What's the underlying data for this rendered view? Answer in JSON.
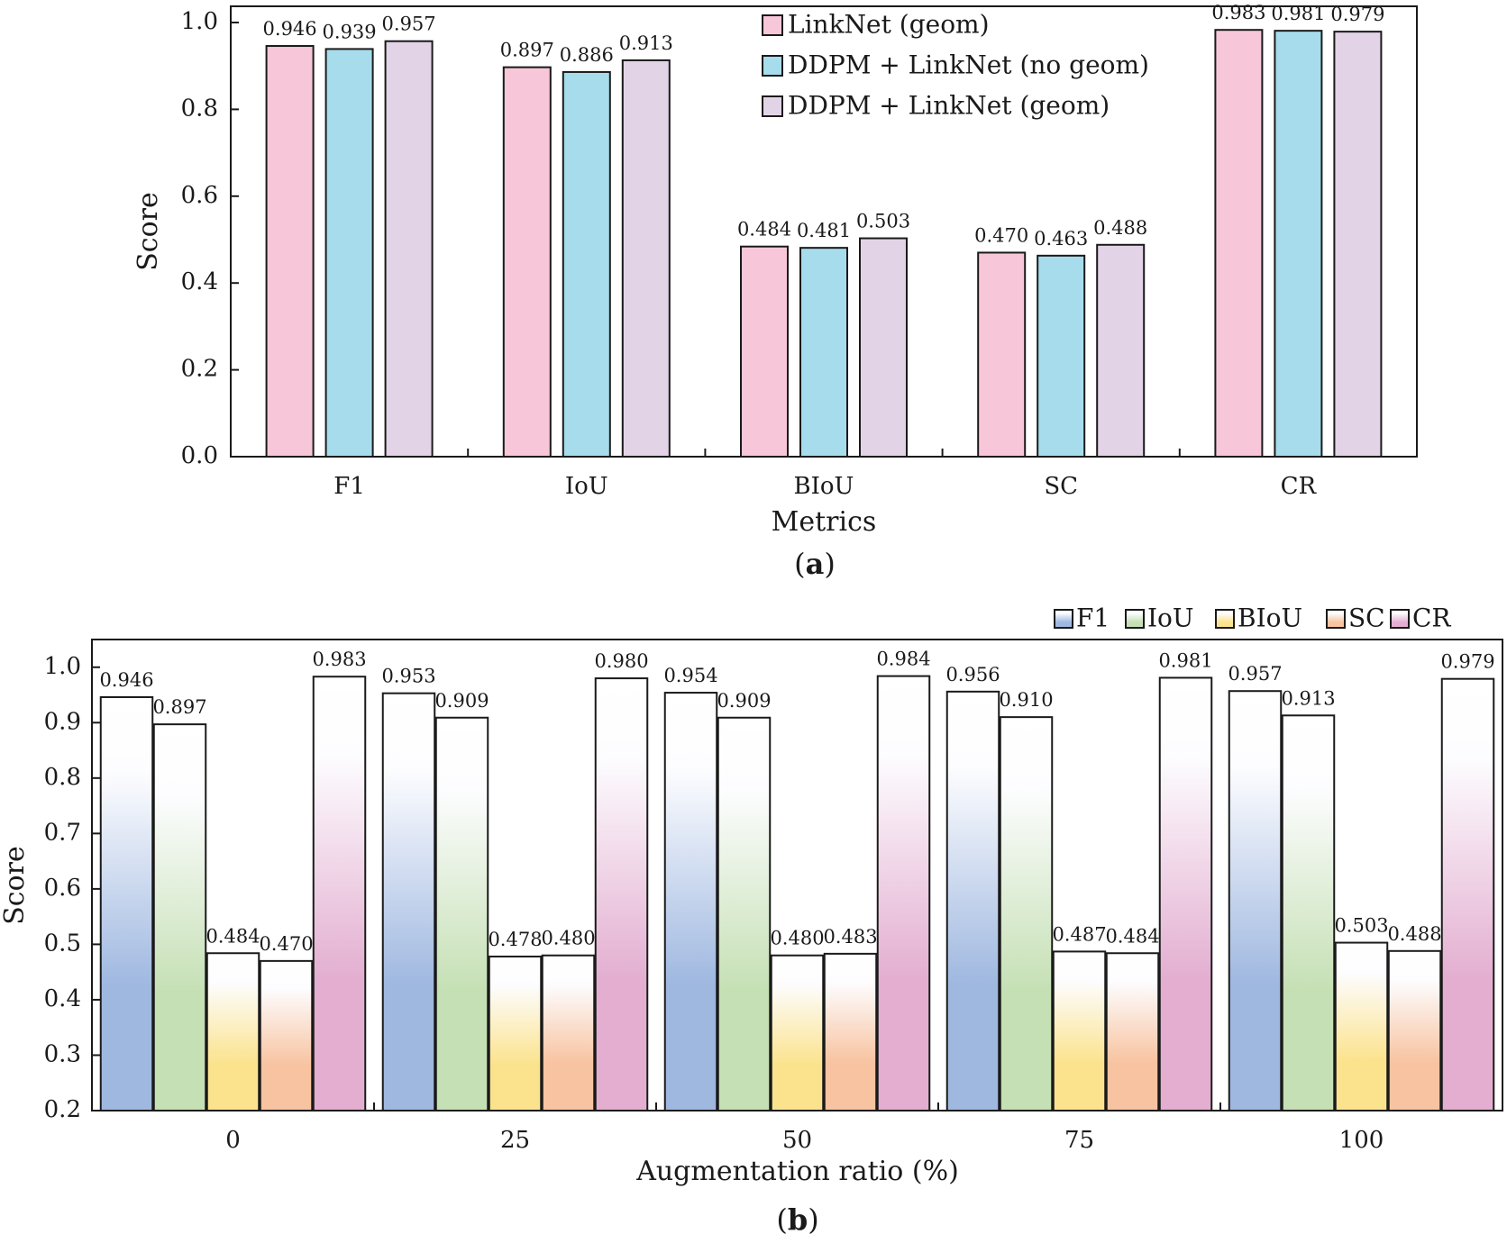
{
  "chart_data": [
    {
      "type": "bar",
      "panel_label": "a",
      "title": "",
      "xlabel": "Metrics",
      "ylabel": "Score",
      "ylim": [
        0.0,
        1.0
      ],
      "yticks": [
        "0.0",
        "0.2",
        "0.4",
        "0.6",
        "0.8",
        "1.0"
      ],
      "categories": [
        "F1",
        "IoU",
        "BIoU",
        "SC",
        "CR"
      ],
      "legend_position": "top-right",
      "series": [
        {
          "name": "LinkNet (geom)",
          "color": "#f7c6d9",
          "values": [
            0.946,
            0.897,
            0.484,
            0.47,
            0.983
          ],
          "labels": [
            "0.946",
            "0.897",
            "0.484",
            "0.470",
            "0.983"
          ]
        },
        {
          "name": "DDPM + LinkNet (no geom)",
          "color": "#a6dcec",
          "values": [
            0.939,
            0.886,
            0.481,
            0.463,
            0.981
          ],
          "labels": [
            "0.939",
            "0.886",
            "0.481",
            "0.463",
            "0.981"
          ]
        },
        {
          "name": "DDPM + LinkNet (geom)",
          "color": "#e2d3e6",
          "values": [
            0.957,
            0.913,
            0.503,
            0.488,
            0.979
          ],
          "labels": [
            "0.957",
            "0.913",
            "0.503",
            "0.488",
            "0.979"
          ]
        }
      ]
    },
    {
      "type": "bar",
      "panel_label": "b",
      "title": "",
      "xlabel": "Augmentation ratio (%)",
      "ylabel": "Score",
      "ylim": [
        0.2,
        1.05
      ],
      "yticks": [
        "0.2",
        "0.3",
        "0.4",
        "0.5",
        "0.6",
        "0.7",
        "0.8",
        "0.9",
        "1.0"
      ],
      "categories": [
        "0",
        "25",
        "50",
        "75",
        "100"
      ],
      "legend_position": "top-right-outside",
      "series": [
        {
          "name": "F1",
          "color": "#9fb8e0",
          "values": [
            0.946,
            0.953,
            0.954,
            0.956,
            0.957
          ],
          "labels": [
            "0.946",
            "0.953",
            "0.954",
            "0.956",
            "0.957"
          ]
        },
        {
          "name": "IoU",
          "color": "#c5e0b4",
          "values": [
            0.897,
            0.909,
            0.909,
            0.91,
            0.913
          ],
          "labels": [
            "0.897",
            "0.909",
            "0.909",
            "0.910",
            "0.913"
          ]
        },
        {
          "name": "BIoU",
          "color": "#fbe38e",
          "values": [
            0.484,
            0.478,
            0.48,
            0.487,
            0.503
          ],
          "labels": [
            "0.484",
            "0.478",
            "0.480",
            "0.487",
            "0.503"
          ]
        },
        {
          "name": "SC",
          "color": "#f8c3a0",
          "values": [
            0.47,
            0.48,
            0.483,
            0.484,
            0.488
          ],
          "labels": [
            "0.470",
            "0.480",
            "0.483",
            "0.484",
            "0.488"
          ]
        },
        {
          "name": "CR",
          "color": "#e3aed0",
          "values": [
            0.983,
            0.98,
            0.984,
            0.981,
            0.979
          ],
          "labels": [
            "0.983",
            "0.980",
            "0.984",
            "0.981",
            "0.979"
          ]
        }
      ]
    }
  ]
}
